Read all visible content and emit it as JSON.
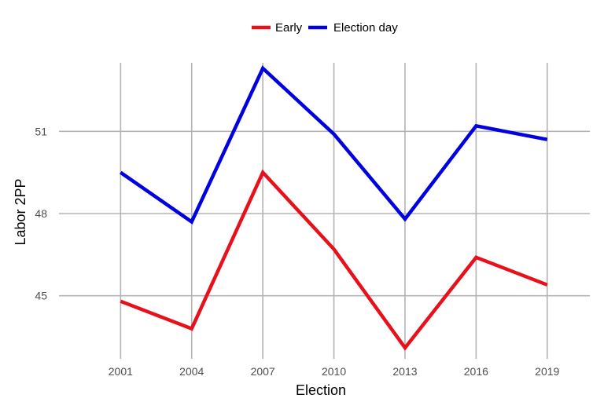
{
  "chart_data": {
    "type": "line",
    "title": "",
    "xlabel": "Election",
    "ylabel": "Labor 2PP",
    "x": [
      2001,
      2004,
      2007,
      2010,
      2013,
      2016,
      2019
    ],
    "x_ticks": [
      "2001",
      "2004",
      "2007",
      "2010",
      "2013",
      "2016",
      "2019"
    ],
    "y_ticks": [
      "45",
      "48",
      "51"
    ],
    "y_tick_values": [
      45,
      48,
      51
    ],
    "xlim": [
      1998.4,
      2020.8
    ],
    "ylim": [
      42.7,
      53.5
    ],
    "grid": true,
    "legend_position": "top",
    "series": [
      {
        "name": "Early",
        "color": "#e8111b",
        "values": [
          44.8,
          43.8,
          49.5,
          46.7,
          43.1,
          46.4,
          45.4
        ]
      },
      {
        "name": "Election day",
        "color": "#0000e0",
        "values": [
          49.5,
          47.7,
          53.3,
          50.9,
          47.8,
          51.2,
          50.7
        ]
      }
    ]
  }
}
